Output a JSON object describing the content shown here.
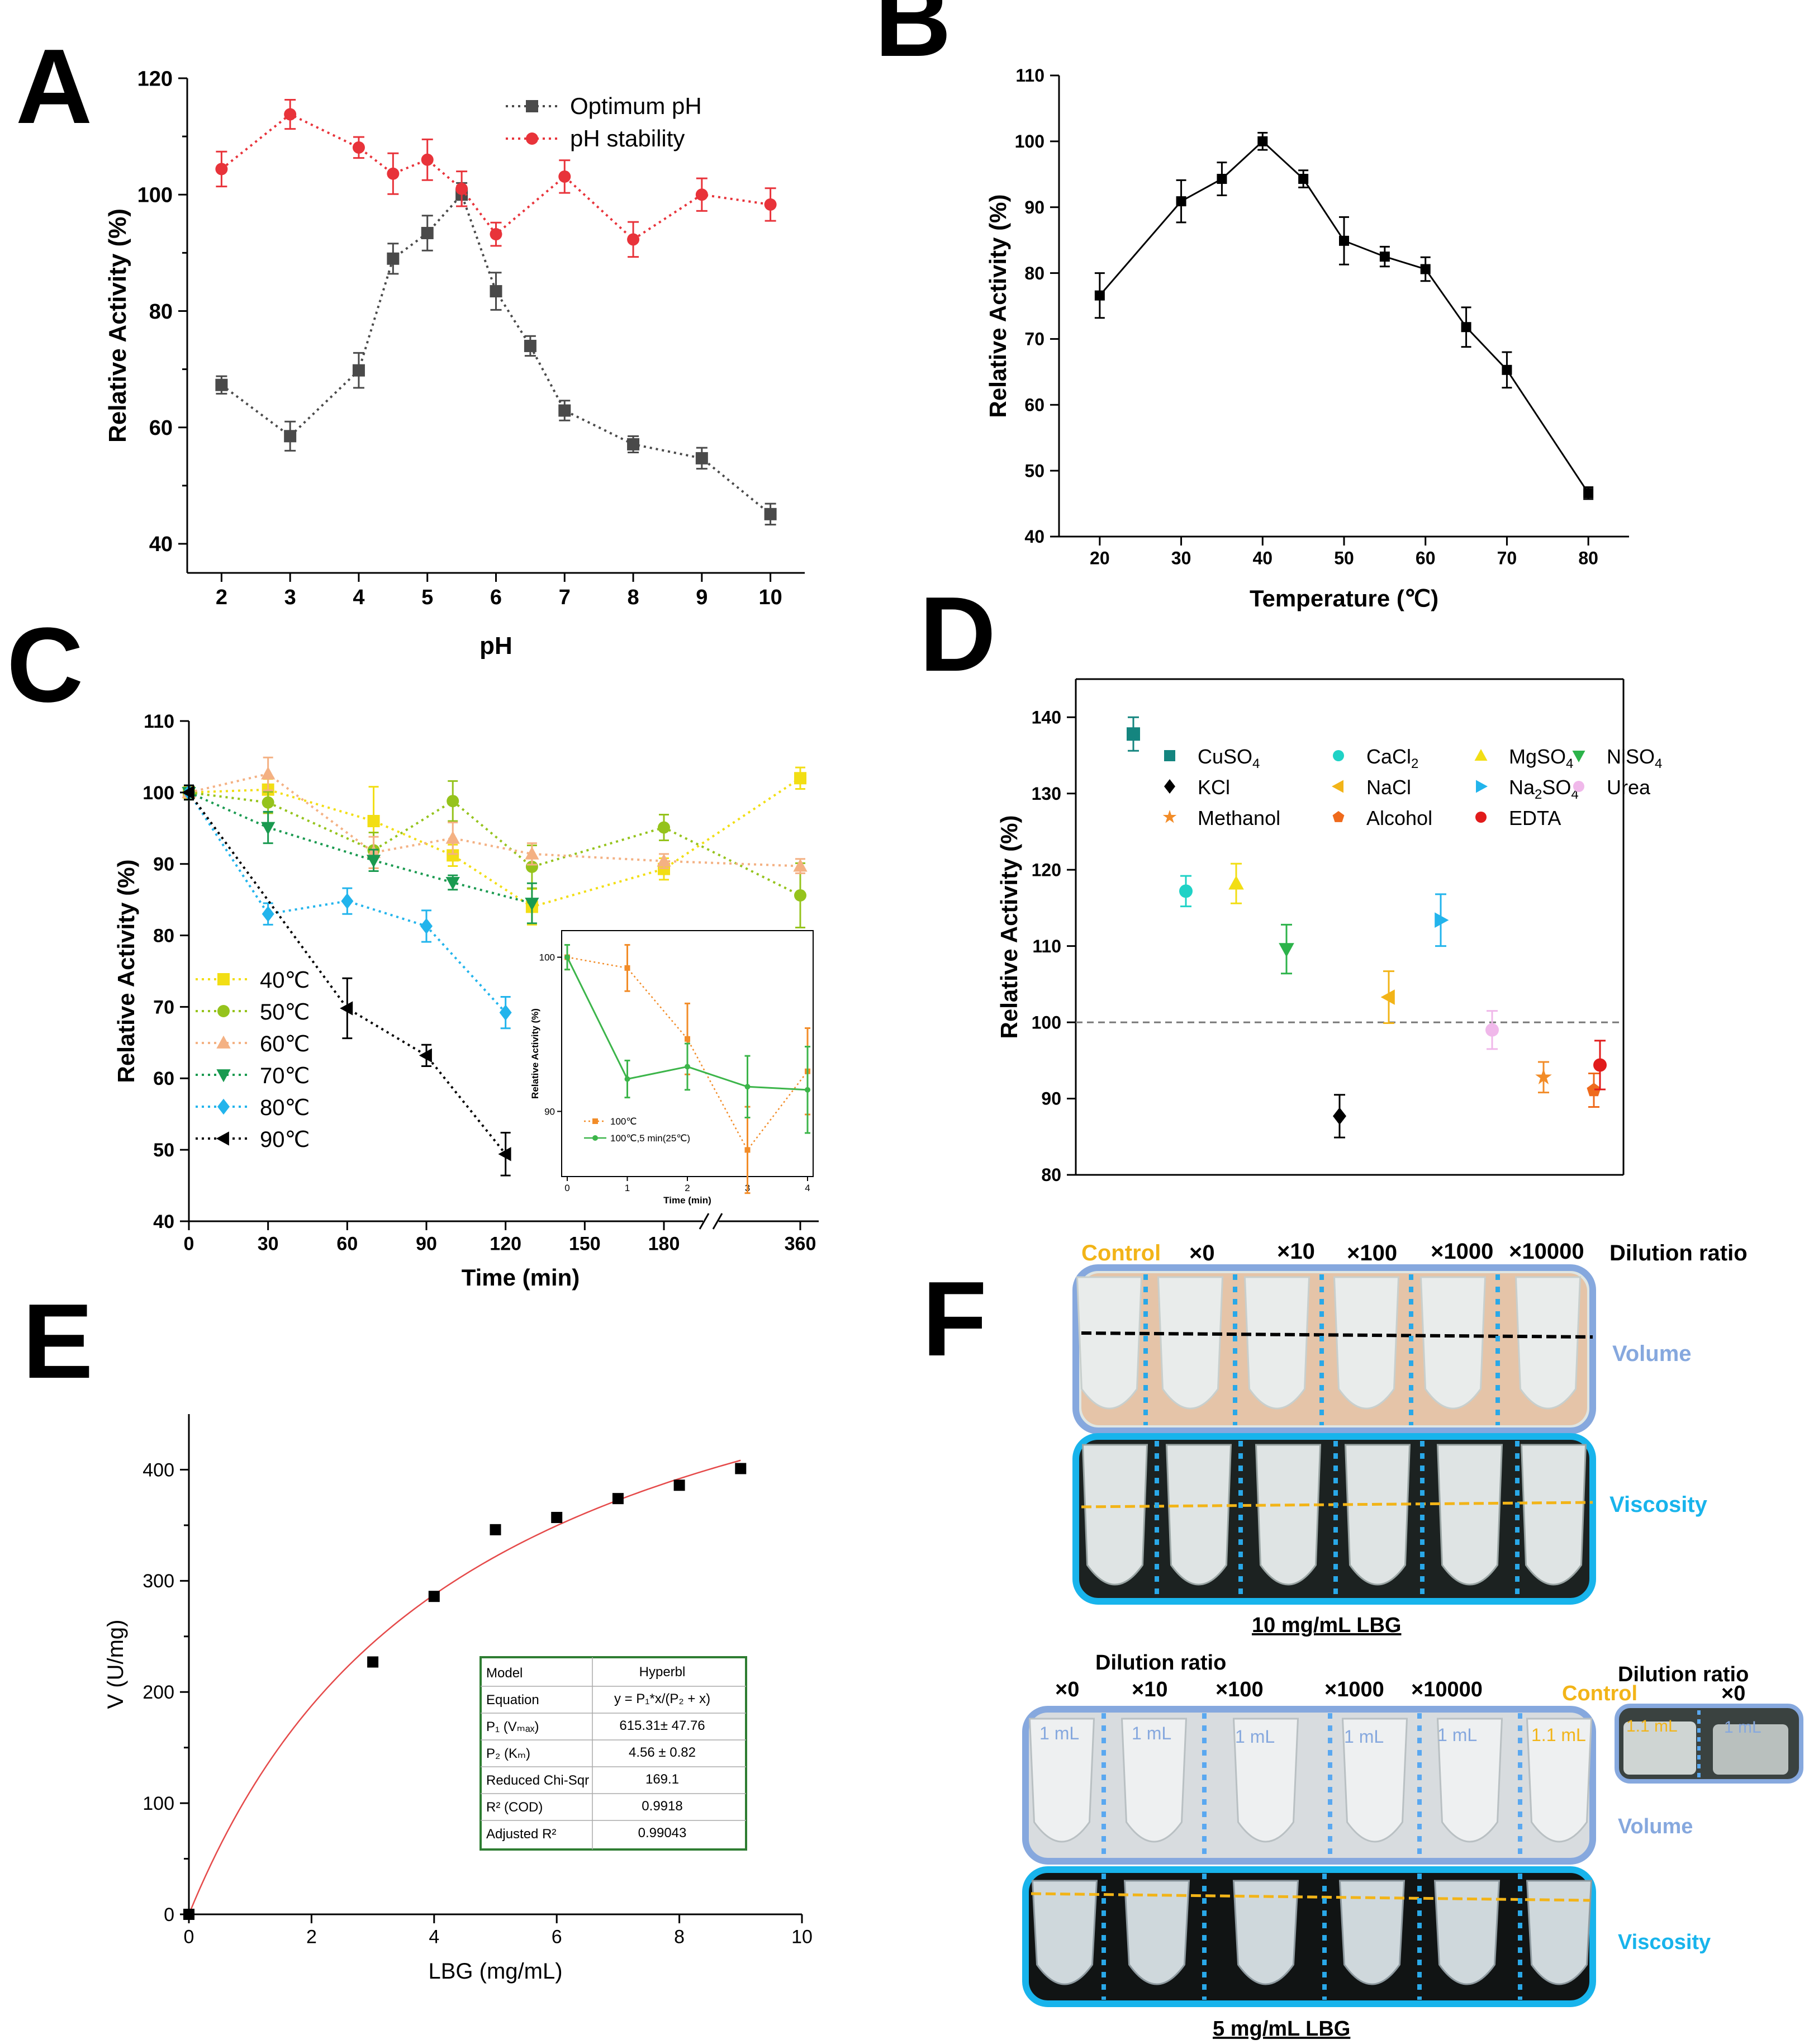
{
  "panels": {
    "A": {
      "letter": "A"
    },
    "B": {
      "letter": "B"
    },
    "C": {
      "letter": "C"
    },
    "D": {
      "letter": "D"
    },
    "E": {
      "letter": "E"
    },
    "F": {
      "letter": "F"
    }
  },
  "chart_data": [
    {
      "id": "A",
      "type": "line",
      "xlabel": "pH",
      "ylabel": "Relative Activity (%)",
      "xlim": [
        1.5,
        10.5
      ],
      "ylim": [
        35,
        120
      ],
      "xticks": [
        2,
        3,
        4,
        5,
        6,
        7,
        8,
        9,
        10
      ],
      "yticks": [
        40,
        60,
        80,
        100,
        120
      ],
      "series": [
        {
          "name": "Optimum pH",
          "color": "#4a4a4a",
          "marker": "square",
          "x": [
            2,
            3,
            4,
            4.5,
            5,
            5.5,
            6,
            6.5,
            7,
            8,
            9,
            10
          ],
          "y": [
            67.3,
            58.5,
            69.8,
            89.0,
            93.4,
            100.0,
            83.4,
            74.0,
            62.9,
            57.1,
            54.7,
            45.1
          ],
          "err": [
            1.5,
            2.5,
            3.0,
            2.6,
            3.0,
            2.0,
            3.2,
            1.7,
            1.7,
            1.4,
            1.8,
            1.8
          ]
        },
        {
          "name": "pH stability",
          "color": "#e8333a",
          "marker": "circle",
          "x": [
            2,
            3,
            4,
            4.5,
            5,
            5.5,
            6,
            7,
            8,
            9,
            10
          ],
          "y": [
            104.4,
            113.8,
            108.1,
            103.6,
            106.0,
            101.0,
            93.2,
            103.1,
            92.3,
            100.0,
            98.3
          ],
          "err": [
            3.0,
            2.5,
            1.8,
            3.5,
            3.5,
            3.0,
            2.0,
            2.8,
            3.0,
            2.8,
            2.8
          ]
        }
      ]
    },
    {
      "id": "B",
      "type": "line",
      "xlabel": "Temperature (℃)",
      "ylabel": "Relative Activity (%)",
      "xlim": [
        15,
        85
      ],
      "ylim": [
        40,
        110
      ],
      "xticks": [
        20,
        30,
        40,
        50,
        60,
        70,
        80
      ],
      "yticks": [
        40,
        50,
        60,
        70,
        80,
        90,
        100,
        110
      ],
      "series": [
        {
          "name": "Temperature",
          "color": "#000000",
          "marker": "square",
          "x": [
            20,
            30,
            35,
            40,
            45,
            50,
            55,
            60,
            65,
            70,
            80
          ],
          "y": [
            76.6,
            90.9,
            94.3,
            100.0,
            94.3,
            84.9,
            82.5,
            80.6,
            71.8,
            65.3,
            46.6
          ],
          "err": [
            3.4,
            3.2,
            2.5,
            1.3,
            1.3,
            3.6,
            1.5,
            1.8,
            3.0,
            2.7,
            0.9
          ]
        }
      ]
    },
    {
      "id": "C",
      "type": "line",
      "xlabel": "Time (min)",
      "ylabel": "Relative Activity (%)",
      "ylim": [
        40,
        110
      ],
      "xticks_labels": [
        "0",
        "30",
        "60",
        "90",
        "120",
        "150",
        "180",
        "360"
      ],
      "yticks": [
        40,
        50,
        60,
        70,
        80,
        90,
        100,
        110
      ],
      "series": [
        {
          "name": "40℃",
          "color": "#f2de14",
          "marker": "square",
          "x": [
            0,
            30,
            70,
            100,
            130,
            180,
            360
          ],
          "y": [
            100,
            100.4,
            96.0,
            91.2,
            84.0,
            89.3,
            102.0
          ],
          "err": [
            1,
            1.5,
            4.8,
            1.5,
            2.5,
            1.5,
            1.5
          ]
        },
        {
          "name": "50℃",
          "color": "#95c31c",
          "marker": "circle",
          "x": [
            0,
            30,
            70,
            100,
            130,
            180,
            360
          ],
          "y": [
            100,
            98.6,
            91.9,
            98.8,
            89.6,
            95.1,
            85.6
          ],
          "err": [
            1,
            1.5,
            2.5,
            2.8,
            3.0,
            1.8,
            4.5
          ]
        },
        {
          "name": "60℃",
          "color": "#f4b183",
          "marker": "triangle-up",
          "x": [
            0,
            30,
            70,
            100,
            130,
            180,
            360
          ],
          "y": [
            100,
            102.6,
            91.6,
            93.6,
            91.4,
            90.4,
            89.7
          ],
          "err": [
            1,
            2.3,
            2.2,
            2.2,
            1.5,
            1.0,
            1.0
          ]
        },
        {
          "name": "70℃",
          "color": "#1a9a50",
          "marker": "triangle-down",
          "x": [
            0,
            30,
            70,
            100,
            130
          ],
          "y": [
            100,
            95.1,
            90.5,
            87.4,
            84.5
          ],
          "err": [
            1,
            2.2,
            1.5,
            1.0,
            2.8
          ]
        },
        {
          "name": "80℃",
          "color": "#22b4ec",
          "marker": "diamond",
          "x": [
            0,
            30,
            60,
            90,
            120
          ],
          "y": [
            100,
            83.0,
            84.8,
            81.3,
            69.2
          ],
          "err": [
            1,
            1.5,
            1.8,
            2.2,
            2.2
          ]
        },
        {
          "name": "90℃",
          "color": "#000000",
          "marker": "triangle-left",
          "x": [
            0,
            60,
            90,
            120
          ],
          "y": [
            100,
            69.8,
            63.2,
            49.4
          ],
          "err": [
            1,
            4.2,
            1.5,
            3.0
          ]
        }
      ],
      "inset": {
        "xlabel": "Time (min)",
        "ylabel": "Relative Activity (%)",
        "xticks": [
          0,
          1,
          2,
          3,
          4
        ],
        "ytick_labels": [
          "90",
          "100"
        ],
        "series": [
          {
            "name": "100℃",
            "color": "#f28c28",
            "x": [
              0,
              1,
              2,
              3,
              4
            ],
            "y": [
              100,
              99.3,
              94.7,
              87.5,
              92.6
            ],
            "err": [
              0.8,
              1.5,
              2.3,
              2.8,
              2.8
            ]
          },
          {
            "name": "100℃,5 min(25℃)",
            "color": "#3cb54a",
            "x": [
              0,
              1,
              2,
              3,
              4
            ],
            "y": [
              100,
              92.1,
              92.9,
              91.6,
              91.4
            ],
            "err": [
              0.8,
              1.2,
              1.5,
              2.0,
              2.8
            ]
          }
        ]
      }
    },
    {
      "id": "D",
      "type": "scatter",
      "xlabel": "",
      "ylabel": "Relative Activity (%)",
      "ylim": [
        80,
        145
      ],
      "yticks": [
        80,
        90,
        100,
        110,
        120,
        130,
        140
      ],
      "reference_line": 100,
      "series": [
        {
          "name": "CuSO4",
          "sub": "4",
          "base": "CuSO",
          "color": "#14857f",
          "marker": "square",
          "y": 137.8,
          "err": 2.2
        },
        {
          "name": "CaCl2",
          "sub": "2",
          "base": "CaCl",
          "color": "#1fd2c6",
          "marker": "circle",
          "y": 117.2,
          "err": 2.0
        },
        {
          "name": "MgSO4",
          "sub": "4",
          "base": "MgSO",
          "color": "#f2de14",
          "marker": "triangle-up",
          "y": 118.2,
          "err": 2.6
        },
        {
          "name": "NiSO4",
          "sub": "4",
          "base": "NiSO",
          "color": "#2cb34a",
          "marker": "triangle-down",
          "y": 109.6,
          "err": 3.2
        },
        {
          "name": "KCl",
          "sub": "",
          "base": "KCl",
          "color": "#000000",
          "marker": "diamond",
          "y": 87.7,
          "err": 2.8
        },
        {
          "name": "NaCl",
          "sub": "",
          "base": "NaCl",
          "color": "#f2b418",
          "marker": "triangle-left",
          "y": 103.3,
          "err": 3.4
        },
        {
          "name": "Na2SO4",
          "sub": "2",
          "base": "Na",
          "tail": "SO",
          "sub2": "4",
          "color": "#22b4ec",
          "marker": "triangle-right",
          "y": 113.4,
          "err": 3.4
        },
        {
          "name": "Urea",
          "sub": "",
          "base": "Urea",
          "color": "#f0b8ea",
          "marker": "circle",
          "y": 99.0,
          "err": 2.5
        },
        {
          "name": "Methanol",
          "sub": "",
          "base": "Methanol",
          "color": "#f28c28",
          "marker": "star",
          "y": 92.8,
          "err": 2.0
        },
        {
          "name": "Alcohol",
          "sub": "",
          "base": "Alcohol",
          "color": "#ef6a1c",
          "marker": "pentagon",
          "y": 91.1,
          "err": 2.2
        },
        {
          "name": "EDTA",
          "sub": "",
          "base": "EDTA",
          "color": "#e11b1b",
          "marker": "circle",
          "y": 94.4,
          "err": 3.2
        }
      ]
    },
    {
      "id": "E",
      "type": "scatter",
      "xlabel": "LBG (mg/mL)",
      "ylabel": "V (U/mg)",
      "xlim": [
        0,
        10
      ],
      "ylim": [
        0,
        450
      ],
      "xticks": [
        0,
        2,
        4,
        6,
        8,
        10
      ],
      "yticks": [
        0,
        100,
        200,
        300,
        400
      ],
      "points": {
        "x": [
          0,
          3,
          4,
          5,
          6,
          7,
          8,
          9
        ],
        "y": [
          0,
          227,
          286,
          346,
          357,
          374,
          386,
          401
        ]
      },
      "fit": {
        "model": "Hyperbl",
        "vmax": 615.31,
        "km": 4.56
      },
      "fit_table": [
        [
          "Model",
          "Hyperbl"
        ],
        [
          "Equation",
          "y = P₁*x/(P₂ + x)"
        ],
        [
          "P₁ (Vₘₐₓ)",
          "615.31± 47.76"
        ],
        [
          "P₂ (Kₘ)",
          "4.56 ± 0.82"
        ],
        [
          "Reduced Chi-Sqr",
          "169.1"
        ],
        [
          "R² (COD)",
          "0.9918"
        ],
        [
          "Adjusted R²",
          "0.99043"
        ]
      ]
    }
  ],
  "photoF": {
    "top": {
      "header_labels": [
        "Control",
        "×0",
        "×10",
        "×100",
        "×1000",
        "×10000"
      ],
      "ratio_label": "Dilution ratio",
      "volume_label": "Volume",
      "viscosity_label": "Viscosity",
      "caption": "10 mg/mL   LBG"
    },
    "bottom": {
      "title": "Dilution ratio",
      "header_labels": [
        "×0",
        "×10",
        "×100",
        "×1000",
        "×10000"
      ],
      "control_label": "Control",
      "side_title": "Dilution ratio",
      "side_x0": "×0",
      "tube_volumes": [
        "1 mL",
        "1 mL",
        "1 mL",
        "1 mL",
        "1 mL",
        "1.1 mL"
      ],
      "side_volumes": [
        "1.1 mL",
        "1 mL"
      ],
      "volume_label": "Volume",
      "viscosity_label": "Viscosity",
      "caption": "5 mg/mL   LBG"
    }
  }
}
